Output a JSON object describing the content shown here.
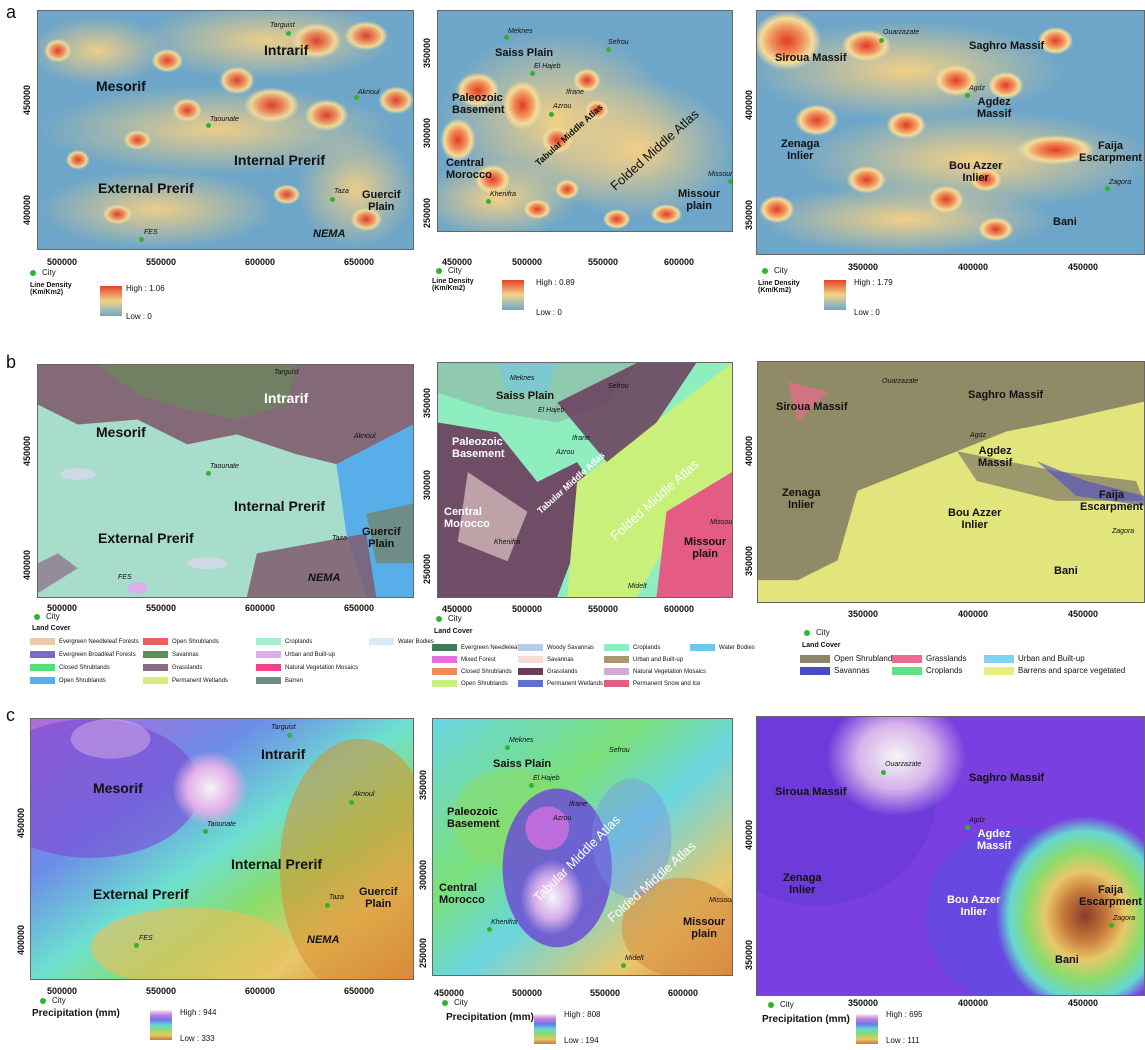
{
  "rows": {
    "a": "a",
    "b": "b",
    "c": "c"
  },
  "city_label": "City",
  "colors": {
    "density_high": "#e8402a",
    "density_mid": "#f0d48a",
    "density_low": "#6fa7c8",
    "city": "#2db52d"
  },
  "region1": {
    "labels": {
      "targuist": "Targuist",
      "intrarif": "Intrarif",
      "mesorif": "Mesorif",
      "aknoul": "Aknoul",
      "taounate": "Taounate",
      "internal_prerif": "Internal Prerif",
      "external_prerif": "External Prerif",
      "taza": "Taza",
      "guercif": "Guercif\nPlain",
      "fes": "FES",
      "nema": "NEMA"
    },
    "xticks": [
      "500000",
      "550000",
      "600000",
      "650000"
    ],
    "yticks": [
      "450000",
      "400000"
    ]
  },
  "region2": {
    "labels": {
      "meknes": "Meknes",
      "sefrou": "Sefrou",
      "saiss": "Saiss Plain",
      "elhajeb": "El Hajeb",
      "ifrane": "Ifrane",
      "azrou": "Azrou",
      "paleozoic": "Paleozoic\nBasement",
      "tabular": "Tabular Middle Atlas",
      "folded": "Folded Middle Atlas",
      "central": "Central\nMorocco",
      "missour": "Missour",
      "missour_plain": "Missour\nplain",
      "khenifra": "Khenifra",
      "midelt": "Midelt"
    },
    "xticks": [
      "450000",
      "500000",
      "550000",
      "600000"
    ],
    "yticks": [
      "350000",
      "300000",
      "250000"
    ]
  },
  "region3": {
    "labels": {
      "ouarzazate": "Ouarzazate",
      "siroua": "Siroua Massif",
      "saghro": "Saghro Massif",
      "agdz": "Agdz",
      "agdez_massif": "Agdez\nMassif",
      "zenaga": "Zenaga\nInlier",
      "faija": "Faija\nEscarpment",
      "bou_azzer": "Bou Azzer\nInlier",
      "zagora": "Zagora",
      "bani": "Bani"
    },
    "xticks": [
      "350000",
      "400000",
      "450000"
    ],
    "yticks": [
      "400000",
      "350000"
    ]
  },
  "legend_a": {
    "title": "Line Density\n(Km/Km2)",
    "p1": {
      "high": "High : 1.06",
      "low": "Low : 0"
    },
    "p2": {
      "high": "High : 0.89",
      "low": "Low :  0"
    },
    "p3": {
      "high": "High : 1.79",
      "low": "Low : 0"
    }
  },
  "legend_b": {
    "title": "Land Cover",
    "p1": [
      {
        "label": "Evergreen Needleleaf Forests",
        "color": "#f1c9a6"
      },
      {
        "label": "Evergreen Broadleaf Forests",
        "color": "#7a6bc4"
      },
      {
        "label": "Closed Shrublands",
        "color": "#4fe07a"
      },
      {
        "label": "Open Shrublands",
        "color": "#55aef0"
      },
      {
        "label": "Open Shrublands",
        "color": "#ee5f5f"
      },
      {
        "label": "Savannas",
        "color": "#5d8f5a"
      },
      {
        "label": "Grasslands",
        "color": "#8b6a86"
      },
      {
        "label": "Permanent Wetlands",
        "color": "#d9eb7a"
      },
      {
        "label": "Croplands",
        "color": "#a8edcf"
      },
      {
        "label": "Urban and Built-up",
        "color": "#d9b0ec"
      },
      {
        "label": "Natural Vegetation Mosaics",
        "color": "#f2418b"
      },
      {
        "label": "Barren",
        "color": "#6f8d87"
      },
      {
        "label": "Water Bodies",
        "color": "#d6ecfa"
      }
    ],
    "p2": [
      {
        "label": "Evergreen Needleleaf Forest",
        "color": "#3f7a5a"
      },
      {
        "label": "Mixed Forest",
        "color": "#e86ee0"
      },
      {
        "label": "Closed Shrublands",
        "color": "#f08a5a"
      },
      {
        "label": "Open Shrublands",
        "color": "#c8f07a"
      },
      {
        "label": "Woody Savannas",
        "color": "#b6cde6"
      },
      {
        "label": "Savannas",
        "color": "#f4dcd4"
      },
      {
        "label": "Grasslands",
        "color": "#6b3b5c"
      },
      {
        "label": "Permanent Wetlands",
        "color": "#5f70d4"
      },
      {
        "label": "Croplands",
        "color": "#8eeec0"
      },
      {
        "label": "Urban and Built-up",
        "color": "#a89a6e"
      },
      {
        "label": "Natural Vegetation Mosaics",
        "color": "#d4aad4"
      },
      {
        "label": "Permanent Snow and Ice",
        "color": "#e45c84"
      },
      {
        "label": "Water Bodies",
        "color": "#6ec8ee"
      }
    ],
    "p3": [
      {
        "label": "Open Shrublands",
        "color": "#8c8566"
      },
      {
        "label": "Savannas",
        "color": "#4a4ac4"
      },
      {
        "label": "Grasslands",
        "color": "#ee6a8e"
      },
      {
        "label": "Croplands",
        "color": "#63e083"
      },
      {
        "label": "Urban and Built-up",
        "color": "#7fd4ee"
      },
      {
        "label": "Barrens and sparce vegetated",
        "color": "#e8ee7a"
      }
    ]
  },
  "legend_c": {
    "title": "Precipitation (mm)",
    "p1": {
      "high": "High : 944",
      "low": "Low : 333"
    },
    "p2": {
      "high": "High : 808",
      "low": "Low : 194"
    },
    "p3": {
      "high": "High : 695",
      "low": "Low : 111"
    }
  }
}
